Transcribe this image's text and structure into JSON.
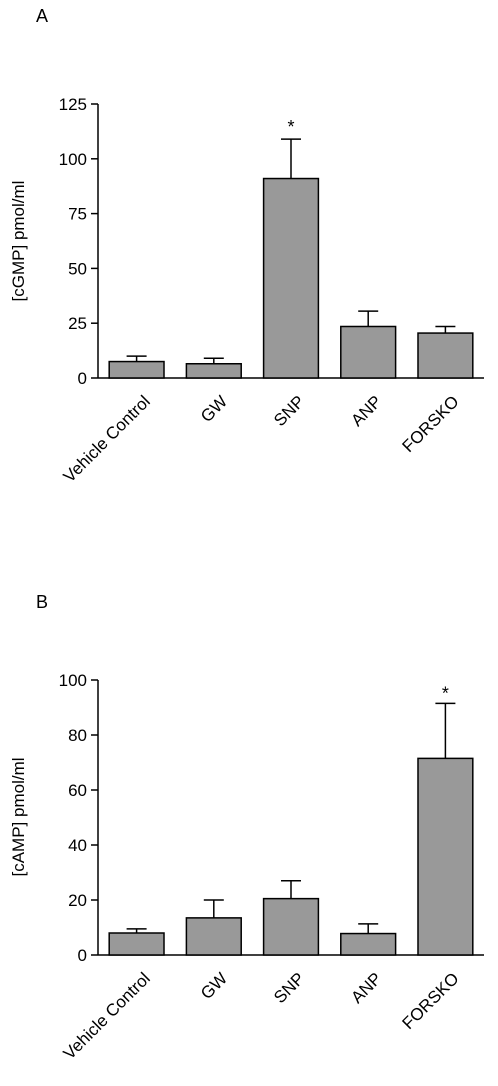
{
  "panels": [
    {
      "letter": "A"
    },
    {
      "letter": "B"
    }
  ],
  "chart_data": [
    {
      "type": "bar",
      "panel": "A",
      "categories": [
        "Vehicle Control",
        "GW",
        "SNP",
        "ANP",
        "FORSKO"
      ],
      "values": [
        7.5,
        6.5,
        91,
        23.5,
        20.5
      ],
      "errors": [
        2.5,
        2.5,
        18,
        7,
        3
      ],
      "significance": [
        "",
        "",
        "*",
        "",
        ""
      ],
      "ylabel": "[cGMP] pmol/ml",
      "xlabel": "",
      "ylim": [
        0,
        125
      ],
      "yticks": [
        0,
        25,
        50,
        75,
        100,
        125
      ],
      "bar_color": "#999999",
      "grid": false,
      "legend": "none"
    },
    {
      "type": "bar",
      "panel": "B",
      "categories": [
        "Vehicle Control",
        "GW",
        "SNP",
        "ANP",
        "FORSKO"
      ],
      "values": [
        8,
        13.5,
        20.5,
        7.8,
        71.5
      ],
      "errors": [
        1.5,
        6.5,
        6.5,
        3.5,
        20
      ],
      "significance": [
        "",
        "",
        "",
        "",
        "*"
      ],
      "ylabel": "[cAMP] pmol/ml",
      "xlabel": "",
      "ylim": [
        0,
        100
      ],
      "yticks": [
        0,
        20,
        40,
        60,
        80,
        100
      ],
      "bar_color": "#999999",
      "grid": false,
      "legend": "none"
    }
  ]
}
